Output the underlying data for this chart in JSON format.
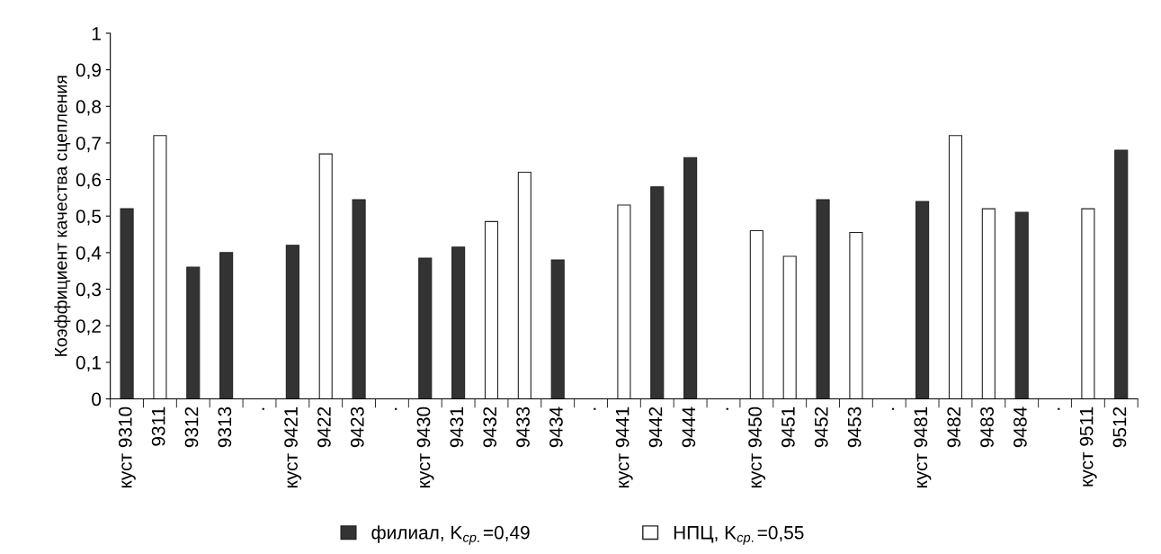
{
  "chart_data": {
    "type": "bar",
    "ylabel": "Коэффициент качества сцепления",
    "categories": [
      "куст 9310",
      "9311",
      "9312",
      "9313",
      ".",
      "куст 9421",
      "9422",
      "9423",
      ".",
      "куст 9430",
      "9431",
      "9432",
      "9433",
      "9434",
      ".",
      "куст 9441",
      "9442",
      "9444",
      ".",
      "куст 9450",
      "9451",
      "9452",
      "9453",
      ".",
      "куст 9481",
      "9482",
      "9483",
      "9484",
      ".",
      "куст 9511",
      "9512"
    ],
    "series": [
      {
        "name": "филиал, K$_{ср.}$=0,49",
        "color": "#333333",
        "values": [
          0.52,
          null,
          0.36,
          0.4,
          null,
          0.42,
          null,
          0.545,
          null,
          0.385,
          0.415,
          null,
          null,
          0.38,
          null,
          null,
          0.58,
          0.66,
          null,
          null,
          null,
          0.545,
          null,
          null,
          0.54,
          null,
          null,
          0.51,
          null,
          null,
          0.68
        ]
      },
      {
        "name": "НПЦ, K$_{ср.}$=0,55",
        "color": "#ffffff",
        "values": [
          null,
          0.72,
          null,
          null,
          null,
          null,
          0.67,
          null,
          null,
          null,
          null,
          0.485,
          0.62,
          null,
          null,
          0.53,
          null,
          null,
          null,
          0.46,
          0.39,
          null,
          0.455,
          null,
          null,
          0.72,
          0.52,
          null,
          null,
          0.52,
          null
        ]
      }
    ],
    "ylim": [
      0,
      1
    ],
    "yticks": [
      0,
      {
        "value": 0.1,
        "label": "0,1"
      },
      {
        "value": 0.2,
        "label": "0,2"
      },
      {
        "value": 0.3,
        "label": "0,3"
      },
      {
        "value": 0.4,
        "label": "0,4"
      },
      {
        "value": 0.5,
        "label": "0,5"
      },
      {
        "value": 0.6,
        "label": "0,6"
      },
      {
        "value": 0.7,
        "label": "0,7"
      },
      {
        "value": 0.8,
        "label": "0,8"
      },
      {
        "value": 0.9,
        "label": "0,9"
      },
      1
    ],
    "legend": "bottom",
    "grid": false
  }
}
